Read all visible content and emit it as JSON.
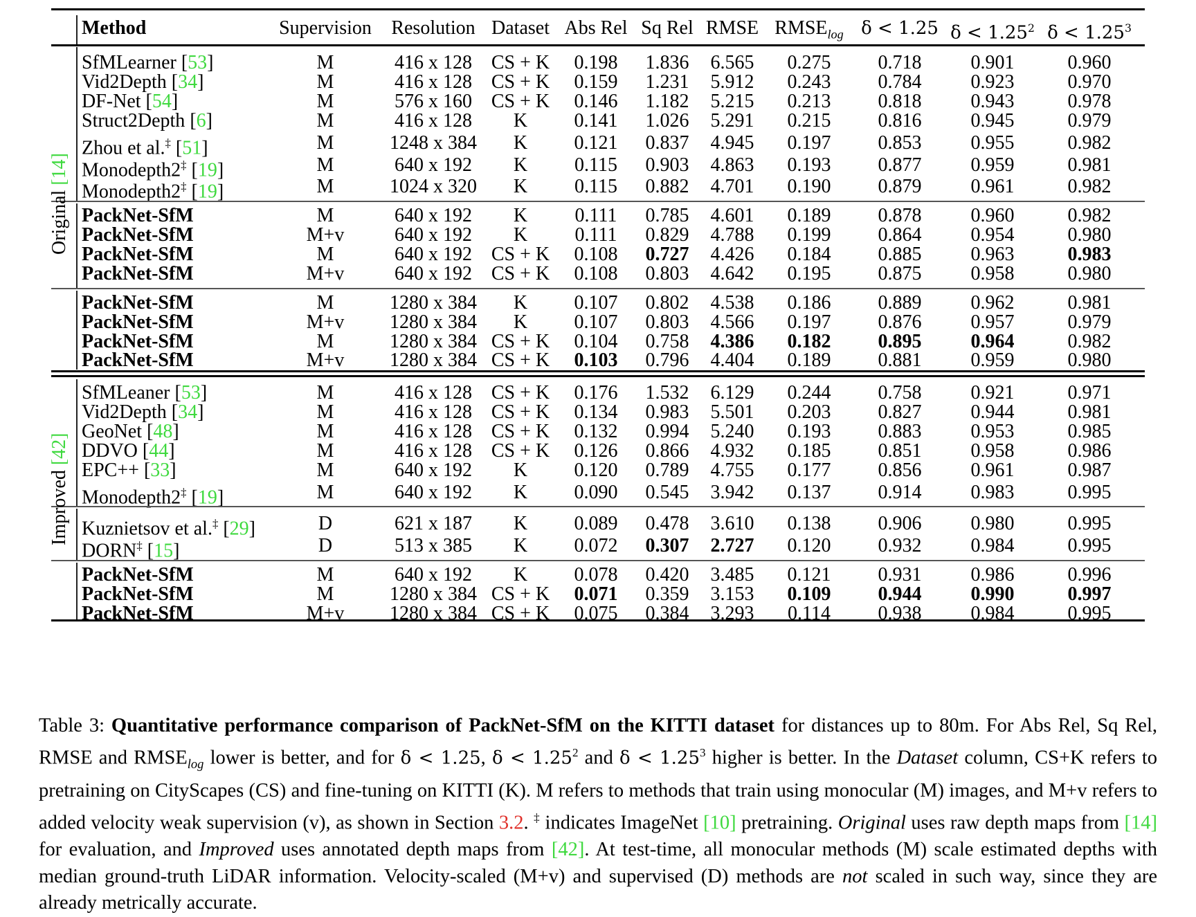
{
  "table": {
    "headers": {
      "method": "Method",
      "supervision": "Supervision",
      "resolution": "Resolution",
      "dataset": "Dataset",
      "abs_rel": "Abs Rel",
      "sq_rel": "Sq Rel",
      "rmse": "RMSE",
      "rmse_log_base": "RMSE",
      "rmse_log_sub": "log",
      "d1": "δ < 1.25",
      "d2_base": "δ < 1.25",
      "d2_sup": "2",
      "d3_base": "δ < 1.25",
      "d3_sup": "3"
    },
    "group_labels": {
      "original": {
        "text": "Original ",
        "cite": "[14]"
      },
      "improved": {
        "text": "Improved ",
        "cite": "[42]"
      }
    },
    "rows": [
      {
        "name": "SfMLearner ",
        "cite": "[53]",
        "dagger": "",
        "bold": false,
        "sup": "M",
        "res": "416 x 128",
        "ds": "CS + K",
        "v": [
          "0.198",
          "1.836",
          "6.565",
          "0.275",
          "0.718",
          "0.901",
          "0.960"
        ],
        "b": []
      },
      {
        "name": "Vid2Depth ",
        "cite": "[34]",
        "dagger": "",
        "bold": false,
        "sup": "M",
        "res": "416 x 128",
        "ds": "CS + K",
        "v": [
          "0.159",
          "1.231",
          "5.912",
          "0.243",
          "0.784",
          "0.923",
          "0.970"
        ],
        "b": []
      },
      {
        "name": "DF-Net ",
        "cite": "[54]",
        "dagger": "",
        "bold": false,
        "sup": "M",
        "res": "576 x 160",
        "ds": "CS + K",
        "v": [
          "0.146",
          "1.182",
          "5.215",
          "0.213",
          "0.818",
          "0.943",
          "0.978"
        ],
        "b": []
      },
      {
        "name": "Struct2Depth ",
        "cite": "[6]",
        "dagger": "",
        "bold": false,
        "sup": "M",
        "res": "416 x 128",
        "ds": "K",
        "v": [
          "0.141",
          "1.026",
          "5.291",
          "0.215",
          "0.816",
          "0.945",
          "0.979"
        ],
        "b": []
      },
      {
        "name": "Zhou et al.",
        "cite": "[51]",
        "dagger": "‡",
        "bold": false,
        "sup": "M",
        "res": "1248 x 384",
        "ds": "K",
        "v": [
          "0.121",
          "0.837",
          "4.945",
          "0.197",
          "0.853",
          "0.955",
          "0.982"
        ],
        "b": []
      },
      {
        "name": "Monodepth2",
        "cite": "[19]",
        "dagger": "‡",
        "bold": false,
        "sup": "M",
        "res": "640 x 192",
        "ds": "K",
        "v": [
          "0.115",
          "0.903",
          "4.863",
          "0.193",
          "0.877",
          "0.959",
          "0.981"
        ],
        "b": []
      },
      {
        "name": "Monodepth2",
        "cite": "[19]",
        "dagger": "‡",
        "bold": false,
        "sup": "M",
        "res": "1024 x 320",
        "ds": "K",
        "v": [
          "0.115",
          "0.882",
          "4.701",
          "0.190",
          "0.879",
          "0.961",
          "0.982"
        ],
        "b": []
      },
      {
        "name": "PackNet-SfM",
        "cite": "",
        "dagger": "",
        "bold": true,
        "sup": "M",
        "res": "640 x 192",
        "ds": "K",
        "v": [
          "0.111",
          "0.785",
          "4.601",
          "0.189",
          "0.878",
          "0.960",
          "0.982"
        ],
        "b": []
      },
      {
        "name": "PackNet-SfM",
        "cite": "",
        "dagger": "",
        "bold": true,
        "sup": "M+v",
        "res": "640 x 192",
        "ds": "K",
        "v": [
          "0.111",
          "0.829",
          "4.788",
          "0.199",
          "0.864",
          "0.954",
          "0.980"
        ],
        "b": []
      },
      {
        "name": "PackNet-SfM",
        "cite": "",
        "dagger": "",
        "bold": true,
        "sup": "M",
        "res": "640 x 192",
        "ds": "CS + K",
        "v": [
          "0.108",
          "0.727",
          "4.426",
          "0.184",
          "0.885",
          "0.963",
          "0.983"
        ],
        "b": [
          1,
          6
        ]
      },
      {
        "name": "PackNet-SfM",
        "cite": "",
        "dagger": "",
        "bold": true,
        "sup": "M+v",
        "res": "640 x 192",
        "ds": "CS + K",
        "v": [
          "0.108",
          "0.803",
          "4.642",
          "0.195",
          "0.875",
          "0.958",
          "0.980"
        ],
        "b": []
      },
      {
        "name": "PackNet-SfM",
        "cite": "",
        "dagger": "",
        "bold": true,
        "sup": "M",
        "res": "1280 x 384",
        "ds": "K",
        "v": [
          "0.107",
          "0.802",
          "4.538",
          "0.186",
          "0.889",
          "0.962",
          "0.981"
        ],
        "b": []
      },
      {
        "name": "PackNet-SfM",
        "cite": "",
        "dagger": "",
        "bold": true,
        "sup": "M+v",
        "res": "1280 x 384",
        "ds": "K",
        "v": [
          "0.107",
          "0.803",
          "4.566",
          "0.197",
          "0.876",
          "0.957",
          "0.979"
        ],
        "b": []
      },
      {
        "name": "PackNet-SfM",
        "cite": "",
        "dagger": "",
        "bold": true,
        "sup": "M",
        "res": "1280 x 384",
        "ds": "CS + K",
        "v": [
          "0.104",
          "0.758",
          "4.386",
          "0.182",
          "0.895",
          "0.964",
          "0.982"
        ],
        "b": [
          2,
          3,
          4,
          5
        ]
      },
      {
        "name": "PackNet-SfM",
        "cite": "",
        "dagger": "",
        "bold": true,
        "sup": "M+v",
        "res": "1280 x 384",
        "ds": "CS + K",
        "v": [
          "0.103",
          "0.796",
          "4.404",
          "0.189",
          "0.881",
          "0.959",
          "0.980"
        ],
        "b": [
          0
        ]
      },
      {
        "name": "SfMLeaner ",
        "cite": "[53]",
        "dagger": "",
        "bold": false,
        "sup": "M",
        "res": "416 x 128",
        "ds": "CS + K",
        "v": [
          "0.176",
          "1.532",
          "6.129",
          "0.244",
          "0.758",
          "0.921",
          "0.971"
        ],
        "b": []
      },
      {
        "name": "Vid2Depth ",
        "cite": "[34]",
        "dagger": "",
        "bold": false,
        "sup": "M",
        "res": "416 x 128",
        "ds": "CS + K",
        "v": [
          "0.134",
          "0.983",
          "5.501",
          "0.203",
          "0.827",
          "0.944",
          "0.981"
        ],
        "b": []
      },
      {
        "name": "GeoNet ",
        "cite": "[48]",
        "dagger": "",
        "bold": false,
        "sup": "M",
        "res": "416 x 128",
        "ds": "CS + K",
        "v": [
          "0.132",
          "0.994",
          "5.240",
          "0.193",
          "0.883",
          "0.953",
          "0.985"
        ],
        "b": []
      },
      {
        "name": "DDVO ",
        "cite": "[44]",
        "dagger": "",
        "bold": false,
        "sup": "M",
        "res": "416 x 128",
        "ds": "CS + K",
        "v": [
          "0.126",
          "0.866",
          "4.932",
          "0.185",
          "0.851",
          "0.958",
          "0.986"
        ],
        "b": []
      },
      {
        "name": "EPC++ ",
        "cite": "[33]",
        "dagger": "",
        "bold": false,
        "sup": "M",
        "res": "640 x 192",
        "ds": "K",
        "v": [
          "0.120",
          "0.789",
          "4.755",
          "0.177",
          "0.856",
          "0.961",
          "0.987"
        ],
        "b": []
      },
      {
        "name": "Monodepth2",
        "cite": "[19]",
        "dagger": "‡",
        "bold": false,
        "sup": "M",
        "res": "640 x 192",
        "ds": "K",
        "v": [
          "0.090",
          "0.545",
          "3.942",
          "0.137",
          "0.914",
          "0.983",
          "0.995"
        ],
        "b": []
      },
      {
        "name": "Kuznietsov et al.",
        "cite": "[29]",
        "dagger": "‡",
        "bold": false,
        "sup": "D",
        "res": "621 x 187",
        "ds": "K",
        "v": [
          "0.089",
          "0.478",
          "3.610",
          "0.138",
          "0.906",
          "0.980",
          "0.995"
        ],
        "b": []
      },
      {
        "name": "DORN",
        "cite": "[15]",
        "dagger": "‡",
        "bold": false,
        "sup": "D",
        "res": "513 x 385",
        "ds": "K",
        "v": [
          "0.072",
          "0.307",
          "2.727",
          "0.120",
          "0.932",
          "0.984",
          "0.995"
        ],
        "b": [
          1,
          2
        ]
      },
      {
        "name": "PackNet-SfM",
        "cite": "",
        "dagger": "",
        "bold": true,
        "sup": "M",
        "res": "640 x 192",
        "ds": "K",
        "v": [
          "0.078",
          "0.420",
          "3.485",
          "0.121",
          "0.931",
          "0.986",
          "0.996"
        ],
        "b": []
      },
      {
        "name": "PackNet-SfM",
        "cite": "",
        "dagger": "",
        "bold": true,
        "sup": "M",
        "res": "1280 x 384",
        "ds": "CS + K",
        "v": [
          "0.071",
          "0.359",
          "3.153",
          "0.109",
          "0.944",
          "0.990",
          "0.997"
        ],
        "b": [
          0,
          3,
          4,
          5,
          6
        ]
      },
      {
        "name": "PackNet-SfM",
        "cite": "",
        "dagger": "",
        "bold": true,
        "sup": "M+v",
        "res": "1280 x 384",
        "ds": "CS + K",
        "v": [
          "0.075",
          "0.384",
          "3.293",
          "0.114",
          "0.938",
          "0.984",
          "0.995"
        ],
        "b": []
      }
    ]
  },
  "caption": {
    "label": "Table 3: ",
    "title": "Quantitative performance comparison of PackNet-SfM on the KITTI dataset",
    "p1": " for distances up to 80m. For Abs Rel, Sq Rel, RMSE and RMSE",
    "p1_sub": "log",
    "p2": " lower is better, and for ",
    "d1": "δ < 1.25",
    "p3": ", ",
    "d2": "δ < 1.25",
    "d2_sup": "2",
    "p4": " and ",
    "d3": "δ < 1.25",
    "d3_sup": "3",
    "p5": " higher is better. In the ",
    "dataset_em": "Dataset",
    "p6": " column, CS+K refers to pretraining on CityScapes (CS) and fine-tuning on KITTI (K). M refers to methods that train using monocular (M) images, and M+v refers to added velocity weak supervision (v), as shown in Section ",
    "section_ref": "3.2",
    "p7": ". ",
    "dagger": "‡",
    "p8": " indicates ImageNet ",
    "ref10": "[10]",
    "p9": " pretraining. ",
    "original_em": "Original",
    "p10": " uses raw depth maps from ",
    "ref14": "[14]",
    "p11": " for evaluation, and ",
    "improved_em": "Improved",
    "p12": " uses annotated depth maps from ",
    "ref42": "[42]",
    "p13": ". At test-time, all monocular methods (M) scale estimated depths with median ground-truth LiDAR information. Velocity-scaled (M+v) and supervised (D) methods are ",
    "not_em": "not",
    "p14": " scaled in such way, since they are already metrically accurate."
  },
  "colors": {
    "citation": "#3fd93f",
    "section_ref": "#e0302a"
  }
}
